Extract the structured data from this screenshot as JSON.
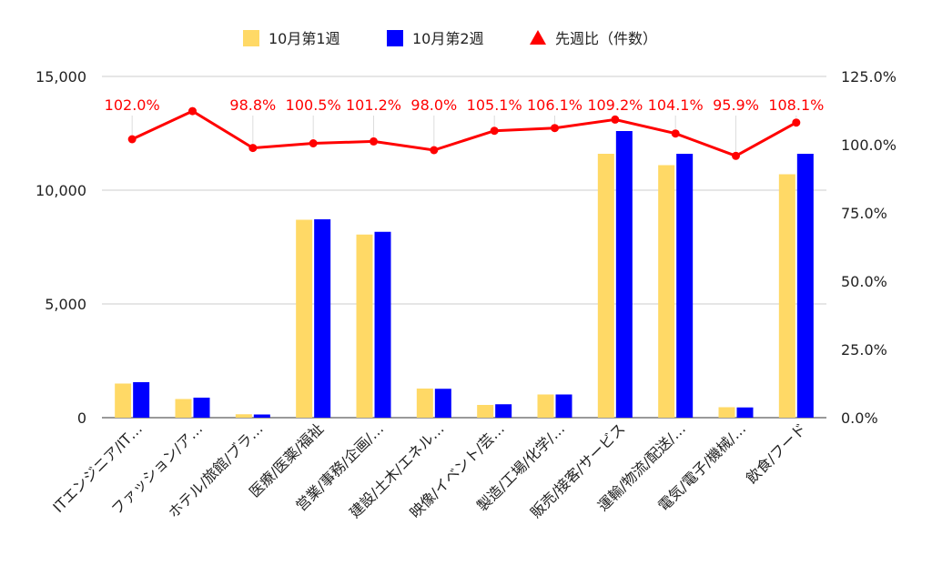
{
  "chart_data": {
    "type": "bar",
    "categories": [
      "ITエンジニア/IT…",
      "ファッション/ア…",
      "ホテル/旅館/ブラ…",
      "医療/医薬/福祉",
      "営業/事務/企画/…",
      "建設/土木/エネル…",
      "映像/イベント/芸…",
      "製造/工場/化学/…",
      "販売/接客/サービス",
      "運輸/物流/配送/…",
      "電気/電子/機械/…",
      "飲食/フード"
    ],
    "series": [
      {
        "name": "10月第1週",
        "color": "#FFD966",
        "axis": "left",
        "values": [
          1500,
          820,
          150,
          8700,
          8050,
          1280,
          560,
          1020,
          11600,
          11100,
          460,
          10700
        ]
      },
      {
        "name": "10月第2週",
        "color": "#0000FF",
        "axis": "left",
        "values": [
          1560,
          880,
          140,
          8720,
          8170,
          1270,
          590,
          1020,
          12600,
          11600,
          450,
          11600
        ]
      },
      {
        "name": "先週比（件数）",
        "color": "#FF0000",
        "axis": "right",
        "type": "line",
        "marker": "triangle",
        "values": [
          102.0,
          112.3,
          98.8,
          100.5,
          101.2,
          98.0,
          105.1,
          106.1,
          109.2,
          104.1,
          95.9,
          108.1
        ],
        "labels": [
          "102.0%",
          "",
          "98.8%",
          "100.5%",
          "101.2%",
          "98.0%",
          "105.1%",
          "106.1%",
          "109.2%",
          "104.1%",
          "95.9%",
          "108.1%"
        ]
      }
    ],
    "y_left": {
      "min": 0,
      "max": 15000,
      "ticks": [
        "0",
        "5,000",
        "10,000",
        "15,000"
      ]
    },
    "y_right": {
      "min": 0,
      "max": 125,
      "ticks": [
        "0.0%",
        "25.0%",
        "50.0%",
        "75.0%",
        "100.0%",
        "125.0%"
      ]
    },
    "legend_position": "top",
    "grid": true
  }
}
